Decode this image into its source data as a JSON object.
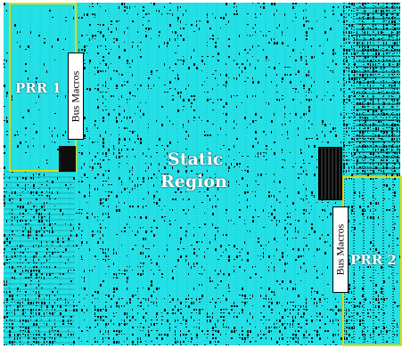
{
  "regions": {
    "prr1": {
      "label": "PRR 1"
    },
    "prr2": {
      "label": "PRR 2"
    },
    "static": {
      "label_line1": "Static",
      "label_line2": "Region"
    }
  },
  "bus_macros": {
    "left": {
      "label": "Bus Macros"
    },
    "right": {
      "label": "Bus Macros"
    }
  },
  "colors": {
    "routing_cyan": "#22e0e6",
    "logic_dark": "#0e0e0e",
    "region_outline": "#e8d800",
    "label_text": "#ffffff"
  }
}
